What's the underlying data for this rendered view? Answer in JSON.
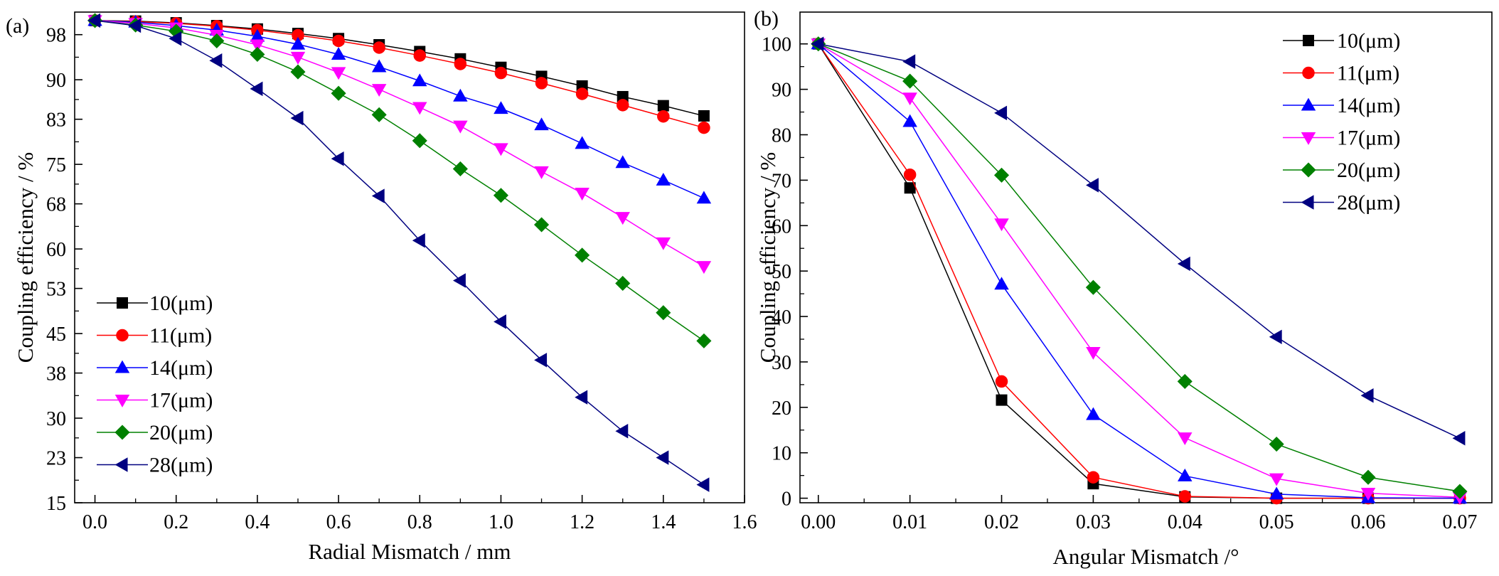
{
  "colors": {
    "10": "#000000",
    "11": "#ff0000",
    "14": "#0000ff",
    "17": "#ff00ff",
    "20": "#008000",
    "28": "#000080"
  },
  "chart_data": [
    {
      "panel_label": "(a)",
      "type": "line",
      "xlabel": "Radial Mismatch / mm",
      "ylabel": "Coupling efficiency / %",
      "xlim": [
        -0.05,
        1.6
      ],
      "ylim": [
        15,
        102
      ],
      "xticks": [
        0.0,
        0.2,
        0.4,
        0.6,
        0.8,
        1.0,
        1.2,
        1.4,
        1.6
      ],
      "xtick_labels": [
        "0.0",
        "0.2",
        "0.4",
        "0.6",
        "0.8",
        "1.0",
        "1.2",
        "1.4",
        "1.6"
      ],
      "yticks": [
        15,
        23,
        30,
        38,
        45,
        53,
        60,
        68,
        75,
        83,
        90,
        98
      ],
      "ytick_labels": [
        "15",
        "23",
        "30",
        "38",
        "45",
        "53",
        "60",
        "68",
        "75",
        "83",
        "90",
        "98"
      ],
      "legend_position": "bottom-left",
      "x": [
        0.0,
        0.1,
        0.2,
        0.3,
        0.4,
        0.5,
        0.6,
        0.7,
        0.8,
        0.9,
        1.0,
        1.1,
        1.2,
        1.3,
        1.4,
        1.5
      ],
      "series": [
        {
          "name": "10(μm)",
          "marker": "square",
          "color_key": "10",
          "values": [
            100.5,
            100.4,
            100.1,
            99.6,
            99.0,
            98.2,
            97.3,
            96.2,
            95.0,
            93.7,
            92.2,
            90.6,
            88.9,
            87.0,
            85.4,
            83.6
          ]
        },
        {
          "name": "11(μm)",
          "marker": "circle",
          "color_key": "11",
          "values": [
            100.5,
            100.3,
            100.0,
            99.5,
            98.8,
            97.9,
            96.9,
            95.7,
            94.3,
            92.8,
            91.2,
            89.4,
            87.5,
            85.5,
            83.5,
            81.5
          ]
        },
        {
          "name": "14(μm)",
          "marker": "triangle-up",
          "color_key": "14",
          "values": [
            100.5,
            100.2,
            99.6,
            98.8,
            97.7,
            96.3,
            94.5,
            92.3,
            89.8,
            87.1,
            84.9,
            82.0,
            78.7,
            75.3,
            72.2,
            69.0
          ]
        },
        {
          "name": "17(μm)",
          "marker": "triangle-down",
          "color_key": "17",
          "values": [
            100.5,
            100.0,
            99.2,
            97.9,
            96.2,
            94.0,
            91.3,
            88.3,
            85.1,
            81.8,
            77.8,
            73.7,
            69.9,
            65.6,
            61.1,
            56.9
          ]
        },
        {
          "name": "20(μm)",
          "marker": "diamond",
          "color_key": "20",
          "values": [
            100.5,
            99.7,
            98.6,
            96.9,
            94.5,
            91.4,
            87.6,
            83.8,
            79.2,
            74.2,
            69.5,
            64.3,
            58.9,
            53.9,
            48.7,
            43.7
          ]
        },
        {
          "name": "28(μm)",
          "marker": "triangle-left",
          "color_key": "28",
          "values": [
            100.5,
            99.6,
            97.3,
            93.4,
            88.4,
            83.2,
            76.0,
            69.4,
            61.5,
            54.4,
            47.1,
            40.3,
            33.7,
            27.7,
            23.0,
            18.2
          ]
        }
      ]
    },
    {
      "panel_label": "(b)",
      "type": "line",
      "xlabel": "Angular Mismatch  /°",
      "ylabel": "Coupling efficiency / %",
      "xlim": [
        -0.002,
        0.0735
      ],
      "ylim": [
        -1,
        107
      ],
      "xticks": [
        0.0,
        0.01,
        0.02,
        0.03,
        0.04,
        0.05,
        0.06,
        0.07
      ],
      "xtick_labels": [
        "0.00",
        "0.01",
        "0.02",
        "0.03",
        "0.04",
        "0.05",
        "0.06",
        "0.07"
      ],
      "yticks": [
        0,
        10,
        20,
        30,
        40,
        50,
        60,
        70,
        80,
        90,
        100
      ],
      "ytick_labels": [
        "0",
        "10",
        "20",
        "30",
        "40",
        "50",
        "60",
        "70",
        "80",
        "90",
        "100"
      ],
      "legend_position": "top-right",
      "x": [
        0.0,
        0.01,
        0.02,
        0.03,
        0.04,
        0.05,
        0.06,
        0.07
      ],
      "series": [
        {
          "name": "10(μm)",
          "marker": "square",
          "color_key": "10",
          "values": [
            100,
            68.3,
            21.6,
            3.2,
            0.3,
            0.0,
            0.0,
            0.0
          ]
        },
        {
          "name": "11(μm)",
          "marker": "circle",
          "color_key": "11",
          "values": [
            100,
            71.2,
            25.7,
            4.6,
            0.4,
            0.0,
            0.0,
            0.0
          ]
        },
        {
          "name": "14(μm)",
          "marker": "triangle-up",
          "color_key": "14",
          "values": [
            100,
            82.9,
            47.1,
            18.4,
            4.9,
            0.9,
            0.1,
            0.0
          ]
        },
        {
          "name": "17(μm)",
          "marker": "triangle-down",
          "color_key": "17",
          "values": [
            100,
            88.1,
            60.4,
            32.1,
            13.3,
            4.3,
            1.1,
            0.2
          ]
        },
        {
          "name": "20(μm)",
          "marker": "diamond",
          "color_key": "20",
          "values": [
            100,
            91.8,
            71.1,
            46.4,
            25.7,
            11.9,
            4.6,
            1.5
          ]
        },
        {
          "name": "28(μm)",
          "marker": "triangle-left",
          "color_key": "28",
          "values": [
            100,
            96.1,
            84.8,
            68.9,
            51.6,
            35.5,
            22.6,
            13.2
          ]
        }
      ]
    }
  ]
}
